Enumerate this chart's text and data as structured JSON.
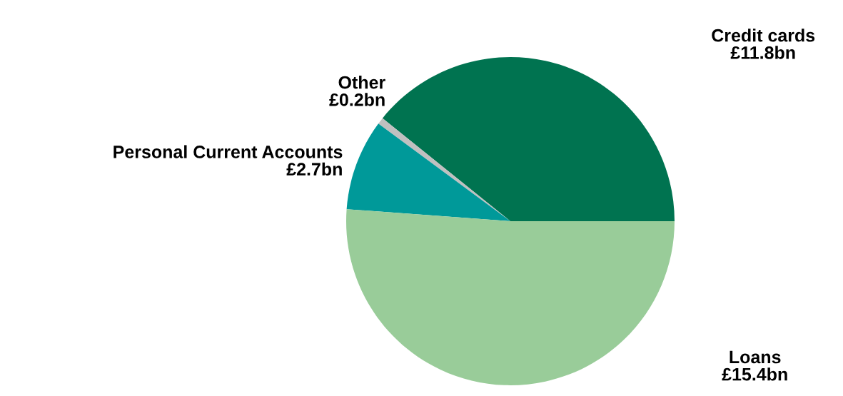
{
  "chart_data": {
    "type": "pie",
    "categories": [
      "Credit cards",
      "Other",
      "Personal Current Accounts",
      "Loans"
    ],
    "values": [
      11.8,
      0.2,
      2.7,
      15.4
    ],
    "value_labels": [
      "£11.8bn",
      "£0.2bn",
      "£2.7bn",
      "£15.4bn"
    ],
    "colors": [
      "#007350",
      "#c0c0c0",
      "#009999",
      "#99cc99"
    ],
    "legend": false
  }
}
